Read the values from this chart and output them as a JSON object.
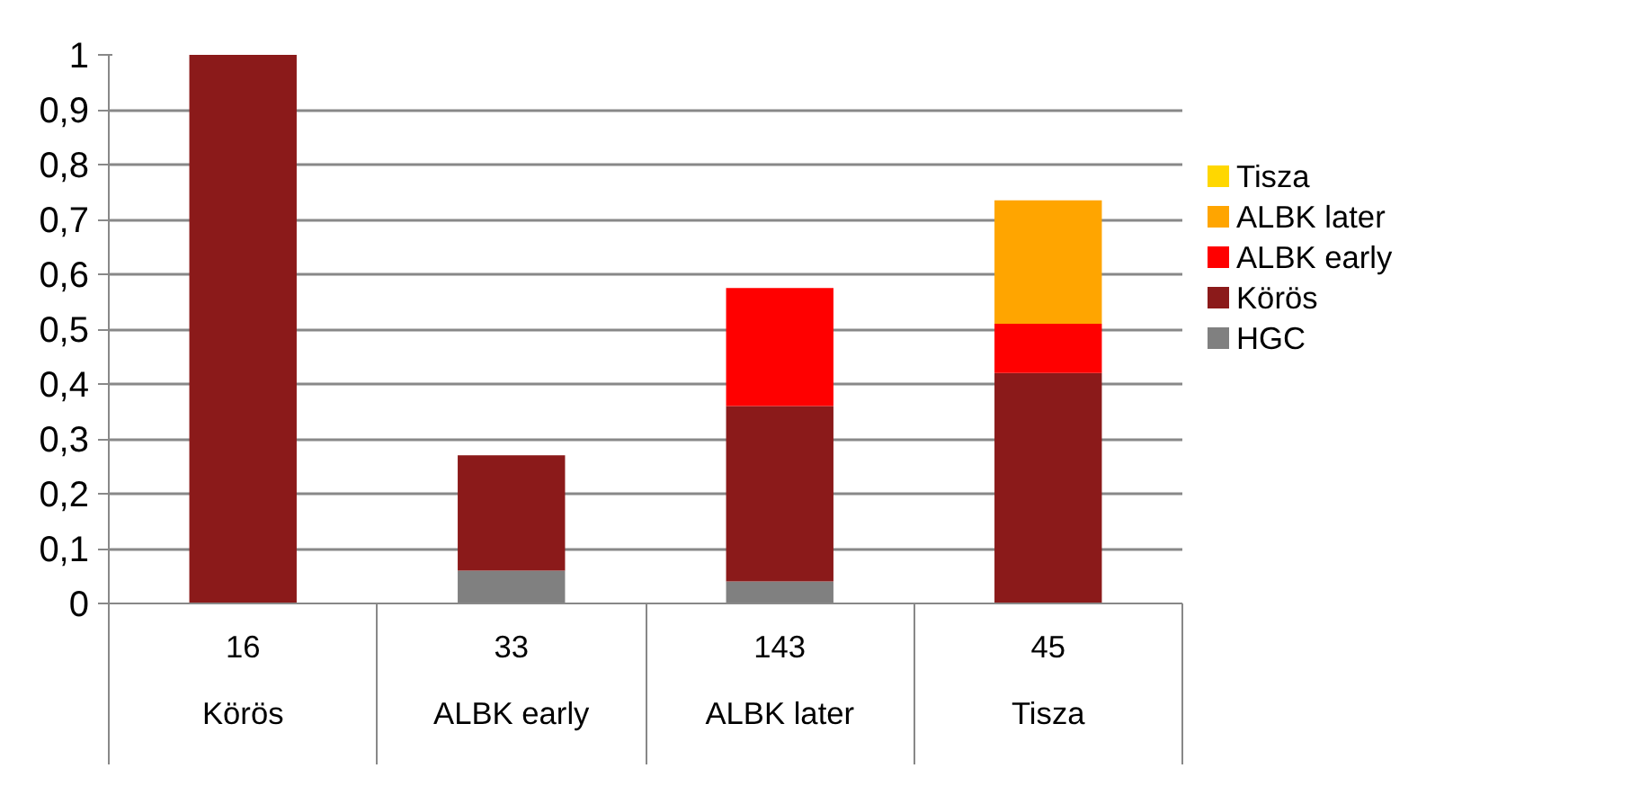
{
  "chart_data": {
    "type": "bar",
    "stacked": true,
    "categories": [
      "16\n\nKörös",
      "33\n\nALBK early",
      "143\n\nALBK later",
      "45\n\nTisza"
    ],
    "series": [
      {
        "name": "HGC",
        "color": "#808080",
        "values": [
          0,
          0.06,
          0.04,
          0
        ]
      },
      {
        "name": "Körös",
        "color": "#8b1a1a",
        "values": [
          1.0,
          0.21,
          0.32,
          0.42
        ]
      },
      {
        "name": "ALBK early",
        "color": "#ff0000",
        "values": [
          0,
          0,
          0.215,
          0.09
        ]
      },
      {
        "name": "ALBK later",
        "color": "#ffa500",
        "values": [
          0,
          0,
          0,
          0.225
        ]
      },
      {
        "name": "Tisza",
        "color": "#ffd700",
        "values": [
          0,
          0,
          0,
          0
        ]
      }
    ],
    "ylim": [
      0,
      1
    ],
    "yticks": [
      0,
      {
        "value": 0.1,
        "label": "0,1"
      },
      {
        "value": 0.2,
        "label": "0,2"
      },
      {
        "value": 0.3,
        "label": "0,3"
      },
      {
        "value": 0.4,
        "label": "0,4"
      },
      {
        "value": 0.5,
        "label": "0,5"
      },
      {
        "value": 0.6,
        "label": "0,6"
      },
      {
        "value": 0.7,
        "label": "0,7"
      },
      {
        "value": 0.8,
        "label": "0,8"
      },
      {
        "value": 0.9,
        "label": "0,9"
      },
      1
    ],
    "grid": "y",
    "legend": "right"
  }
}
